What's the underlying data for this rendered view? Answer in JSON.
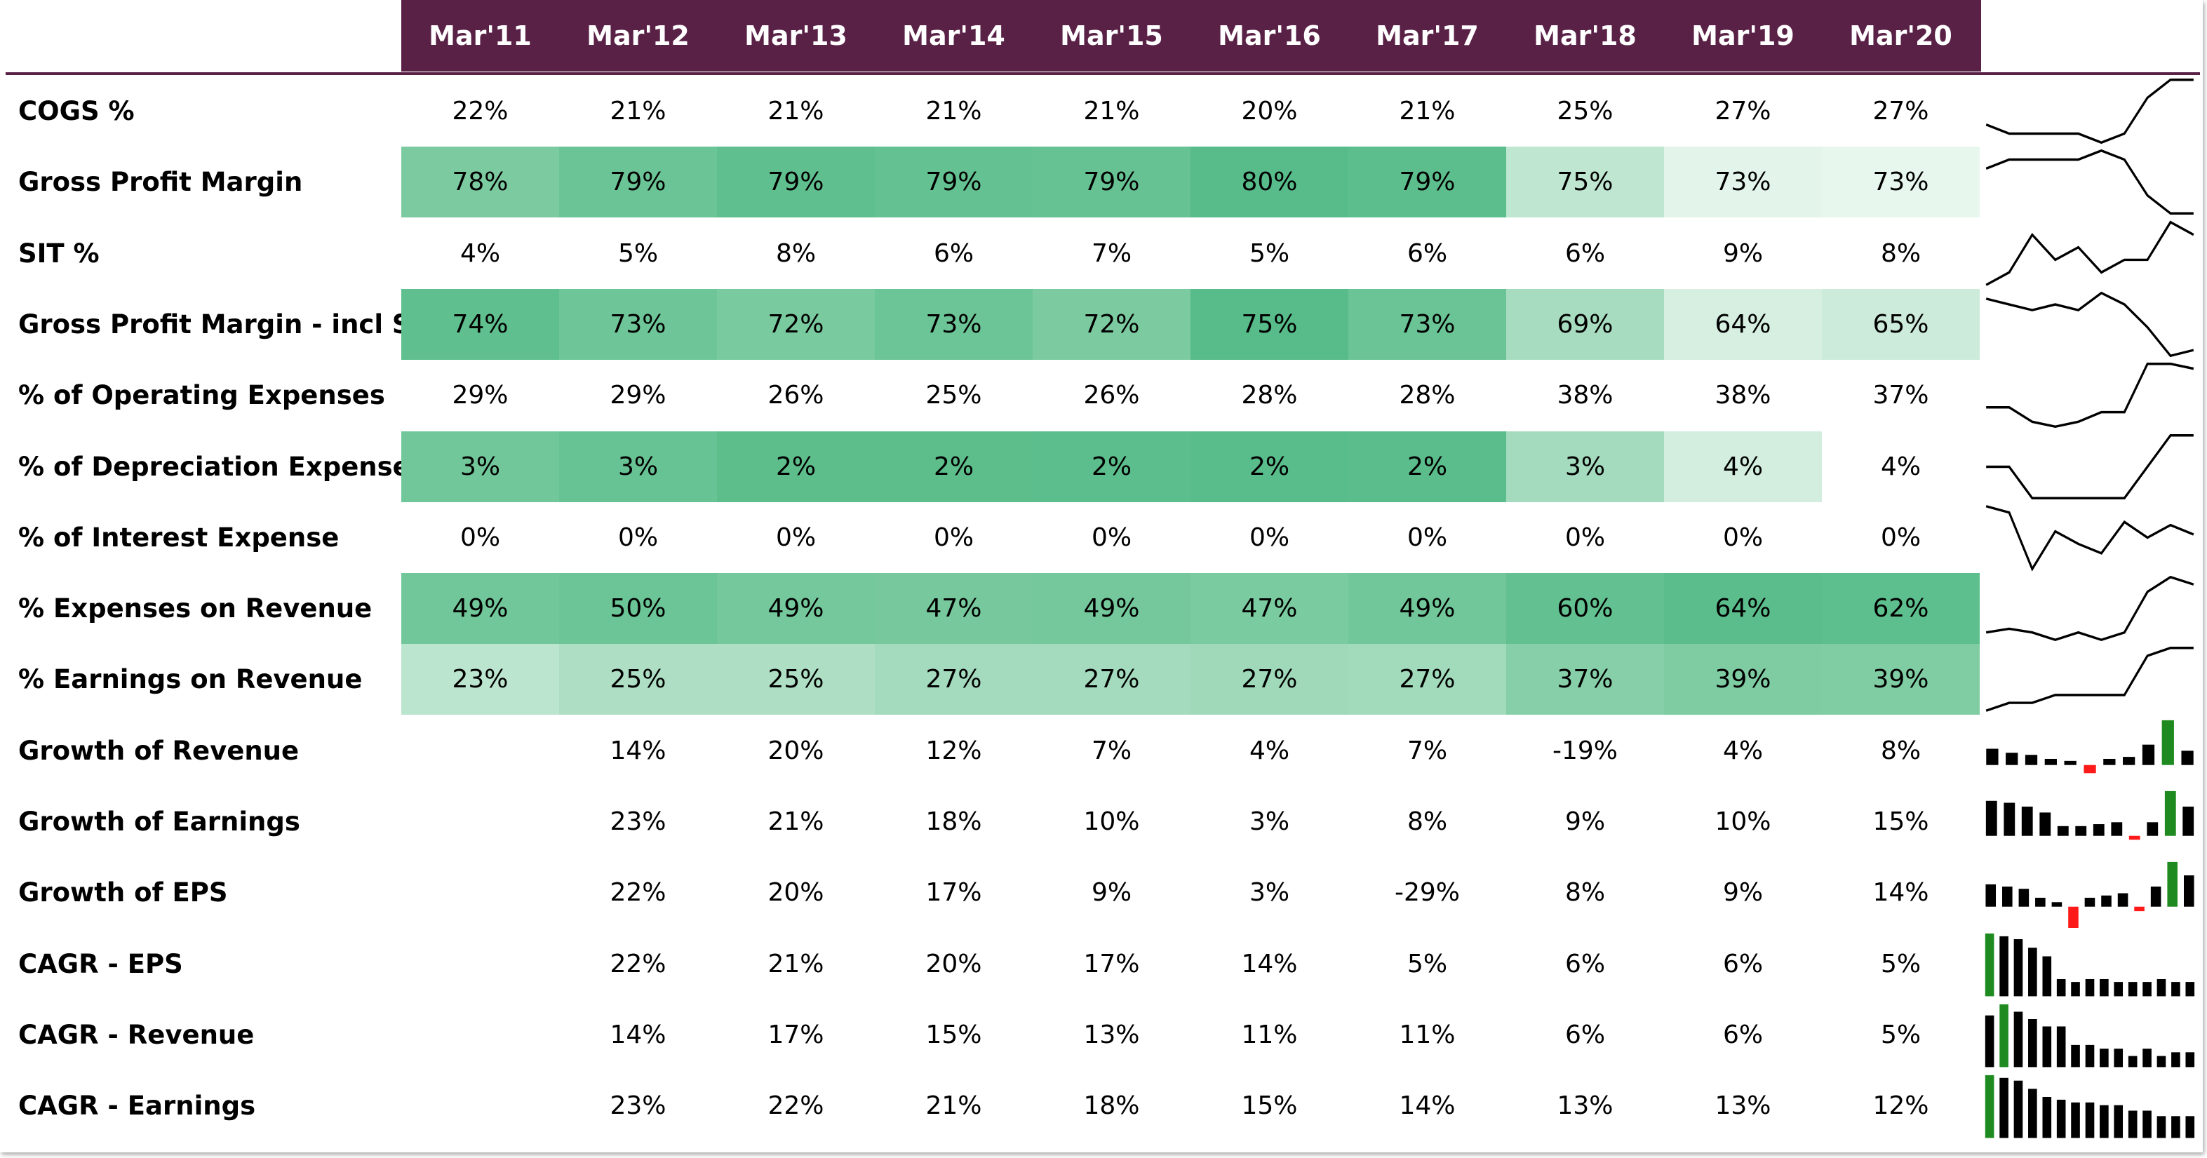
{
  "months": [
    "Mar'11",
    "Mar'12",
    "Mar'13",
    "Mar'14",
    "Mar'15",
    "Mar'16",
    "Mar'17",
    "Mar'18",
    "Mar'19",
    "Mar'20"
  ],
  "rows": [
    {
      "label": "COGS %",
      "values": [
        "22%",
        "21%",
        "21%",
        "21%",
        "21%",
        "20%",
        "21%",
        "25%",
        "27%",
        "27%"
      ],
      "fills": [
        null,
        null,
        null,
        null,
        null,
        null,
        null,
        null,
        null,
        null
      ],
      "spark": {
        "type": "line",
        "data": [
          22,
          21,
          21,
          21,
          21,
          20,
          21,
          25,
          27,
          27
        ]
      }
    },
    {
      "label": "Gross Profit Margin",
      "values": [
        "78%",
        "79%",
        "79%",
        "79%",
        "79%",
        "80%",
        "79%",
        "75%",
        "73%",
        "73%"
      ],
      "fills": [
        "#7ccba0",
        "#6ac495",
        "#5fbf8e",
        "#64c191",
        "#67c293",
        "#57bb8a",
        "#5cbe8c",
        "#bfe6d1",
        "#e3f5ea",
        "#e8f7ee"
      ],
      "spark": {
        "type": "line",
        "data": [
          78,
          79,
          79,
          79,
          79,
          80,
          79,
          75,
          73,
          73
        ]
      }
    },
    {
      "label": "SIT %",
      "values": [
        "4%",
        "5%",
        "8%",
        "6%",
        "7%",
        "5%",
        "6%",
        "6%",
        "9%",
        "8%"
      ],
      "fills": [
        null,
        null,
        null,
        null,
        null,
        null,
        null,
        null,
        null,
        null
      ],
      "spark": {
        "type": "line",
        "data": [
          4,
          5,
          8,
          6,
          7,
          5,
          6,
          6,
          9,
          8
        ]
      }
    },
    {
      "label": "Gross Profit Margin - incl SIT",
      "values": [
        "74%",
        "73%",
        "72%",
        "73%",
        "72%",
        "75%",
        "73%",
        "69%",
        "64%",
        "65%"
      ],
      "fills": [
        "#5fbf8e",
        "#6ec698",
        "#79ca9e",
        "#6cc596",
        "#7ccba0",
        "#57bb8a",
        "#6ac495",
        "#a8dcc0",
        "#d6efe1",
        "#cdebdb"
      ],
      "spark": {
        "type": "line",
        "data": [
          74,
          73,
          72,
          73,
          72,
          75,
          73,
          69,
          64,
          65
        ]
      }
    },
    {
      "label": "% of Operating Expenses",
      "values": [
        "29%",
        "29%",
        "26%",
        "25%",
        "26%",
        "28%",
        "28%",
        "38%",
        "38%",
        "37%"
      ],
      "fills": [
        null,
        null,
        null,
        null,
        null,
        null,
        null,
        null,
        null,
        null
      ],
      "spark": {
        "type": "line",
        "data": [
          29,
          29,
          26,
          25,
          26,
          28,
          28,
          38,
          38,
          37
        ]
      }
    },
    {
      "label": "% of Depreciation Expense",
      "values": [
        "3%",
        "3%",
        "2%",
        "2%",
        "2%",
        "2%",
        "2%",
        "3%",
        "4%",
        "4%"
      ],
      "fills": [
        "#71c79a",
        "#68c394",
        "#5dbe8c",
        "#5dbe8c",
        "#5cbe8c",
        "#59bc8b",
        "#5bbd8b",
        "#a4dabd",
        "#d3eedf",
        null
      ],
      "spark": {
        "type": "line",
        "data": [
          3,
          3,
          2,
          2,
          2,
          2,
          2,
          3,
          4,
          4
        ]
      }
    },
    {
      "label": "% of Interest Expense",
      "values": [
        "0%",
        "0%",
        "0%",
        "0%",
        "0%",
        "0%",
        "0%",
        "0%",
        "0%",
        "0%"
      ],
      "fills": [
        null,
        null,
        null,
        null,
        null,
        null,
        null,
        null,
        null,
        null
      ],
      "spark": {
        "type": "line",
        "data": [
          0.3,
          0.28,
          0.1,
          0.22,
          0.18,
          0.15,
          0.25,
          0.2,
          0.24,
          0.21
        ]
      }
    },
    {
      "label": "% Expenses on Revenue",
      "values": [
        "49%",
        "50%",
        "49%",
        "47%",
        "49%",
        "47%",
        "49%",
        "60%",
        "64%",
        "62%"
      ],
      "fills": [
        "#71c79a",
        "#6cc596",
        "#74c89c",
        "#77c99d",
        "#74c89c",
        "#7bcba0",
        "#72c79a",
        "#63c090",
        "#5abd8b",
        "#5ebf8e"
      ],
      "spark": {
        "type": "line",
        "data": [
          49,
          50,
          49,
          47,
          49,
          47,
          49,
          60,
          64,
          62
        ]
      }
    },
    {
      "label": "% Earnings on Revenue",
      "values": [
        "23%",
        "25%",
        "25%",
        "27%",
        "27%",
        "27%",
        "27%",
        "37%",
        "39%",
        "39%"
      ],
      "fills": [
        "#bce5cf",
        "#aedfc4",
        "#aedfc4",
        "#a4dabd",
        "#a4dabd",
        "#9fd9ba",
        "#a2dabc",
        "#86cfa8",
        "#7fcca3",
        "#80cda4"
      ],
      "spark": {
        "type": "line",
        "data": [
          23,
          25,
          25,
          27,
          27,
          27,
          27,
          37,
          39,
          39
        ]
      }
    },
    {
      "label": "Growth of Revenue",
      "values": [
        "",
        "14%",
        "20%",
        "12%",
        "7%",
        "4%",
        "7%",
        "-19%",
        "4%",
        "8%"
      ],
      "fills": [
        null,
        null,
        null,
        null,
        null,
        null,
        null,
        null,
        null,
        null
      ],
      "spark": {
        "type": "bar",
        "data": [
          8,
          6,
          5,
          3,
          2,
          -4,
          3,
          4,
          10,
          22,
          7
        ]
      }
    },
    {
      "label": "Growth of Earnings",
      "values": [
        "",
        "23%",
        "21%",
        "18%",
        "10%",
        "3%",
        "8%",
        "9%",
        "10%",
        "15%"
      ],
      "fills": [
        null,
        null,
        null,
        null,
        null,
        null,
        null,
        null,
        null,
        null
      ],
      "spark": {
        "type": "bar",
        "data": [
          18,
          17,
          15,
          12,
          5,
          5,
          6,
          7,
          -2,
          7,
          23,
          15
        ]
      }
    },
    {
      "label": "Growth of EPS",
      "values": [
        "",
        "22%",
        "20%",
        "17%",
        "9%",
        "3%",
        "-29%",
        "8%",
        "9%",
        "14%"
      ],
      "fills": [
        null,
        null,
        null,
        null,
        null,
        null,
        null,
        null,
        null,
        null
      ],
      "spark": {
        "type": "bar",
        "data": [
          10,
          9,
          8,
          4,
          2,
          -12,
          4,
          5,
          6,
          -2,
          9,
          20,
          14
        ]
      }
    },
    {
      "label": "CAGR - EPS",
      "values": [
        "",
        "22%",
        "21%",
        "20%",
        "17%",
        "14%",
        "5%",
        "6%",
        "6%",
        "5%"
      ],
      "fills": [
        null,
        null,
        null,
        null,
        null,
        null,
        null,
        null,
        null,
        null
      ],
      "spark": {
        "type": "bar",
        "data": [
          22,
          21,
          20,
          17,
          14,
          6,
          5,
          6,
          6,
          5,
          5,
          5,
          6,
          5,
          5
        ]
      }
    },
    {
      "label": "CAGR - Revenue",
      "values": [
        "",
        "14%",
        "17%",
        "15%",
        "13%",
        "11%",
        "11%",
        "6%",
        "6%",
        "5%"
      ],
      "fills": [
        null,
        null,
        null,
        null,
        null,
        null,
        null,
        null,
        null,
        null
      ],
      "spark": {
        "type": "bar",
        "data": [
          14,
          17,
          15,
          13,
          11,
          11,
          6,
          6,
          5,
          5,
          3,
          5,
          3,
          4,
          4
        ]
      }
    },
    {
      "label": "CAGR - Earnings",
      "values": [
        "",
        "23%",
        "22%",
        "21%",
        "18%",
        "15%",
        "14%",
        "13%",
        "13%",
        "12%"
      ],
      "fills": [
        null,
        null,
        null,
        null,
        null,
        null,
        null,
        null,
        null,
        null
      ],
      "spark": {
        "type": "bar",
        "data": [
          23,
          22,
          21,
          18,
          15,
          14,
          13,
          13,
          12,
          12,
          10,
          10,
          8,
          8,
          8
        ]
      }
    }
  ]
}
